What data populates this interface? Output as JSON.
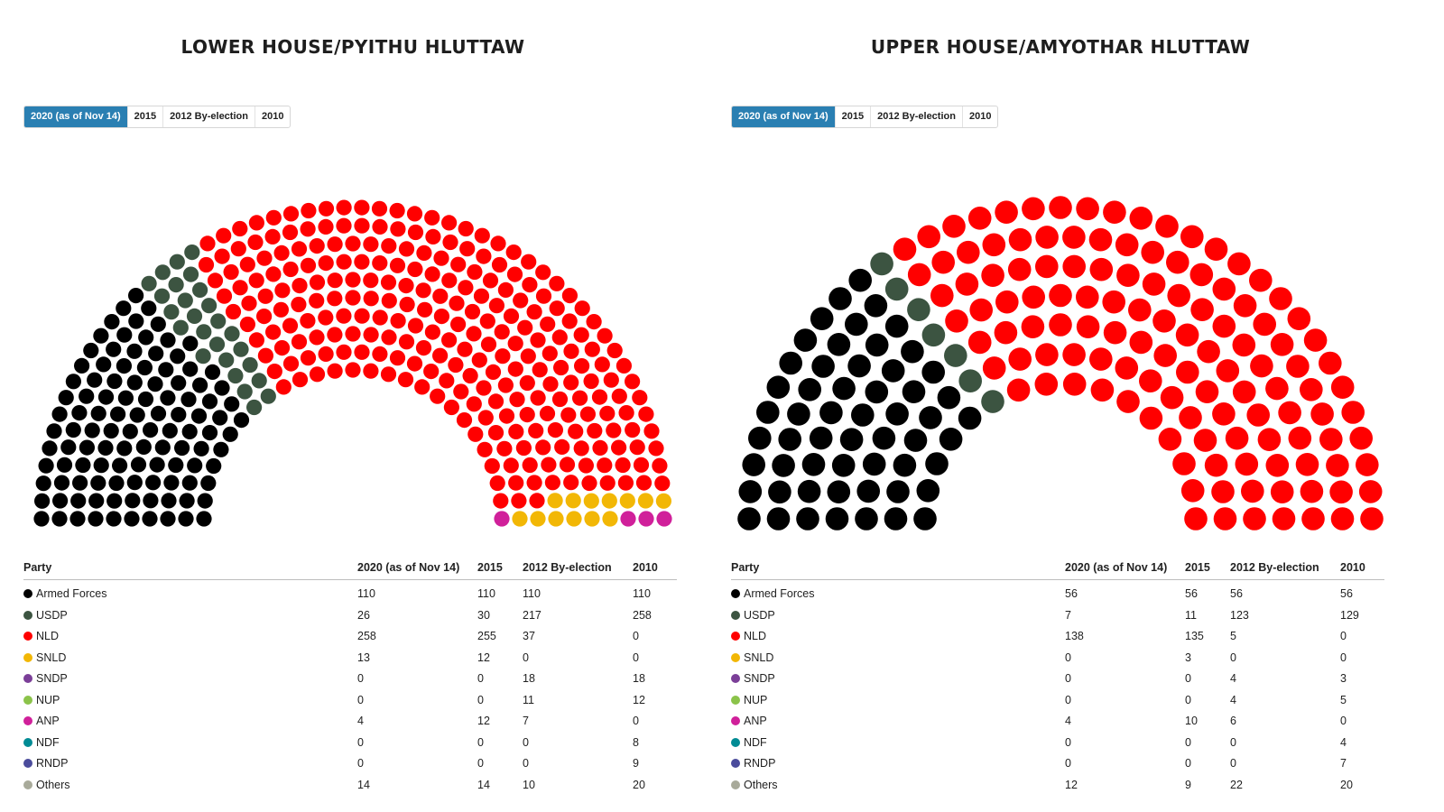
{
  "panels": [
    {
      "title": "LOWER HOUSE/PYITHU HLUTTAW",
      "tabs": [
        "2020 (as of Nov 14)",
        "2015",
        "2012 By-election",
        "2010"
      ],
      "active_tab": 0,
      "table_headers": [
        "Party",
        "2020 (as of Nov 14)",
        "2015",
        "2012 By-election",
        "2010"
      ],
      "rows": [
        {
          "party": "Armed Forces",
          "color": "#000000",
          "v2020": "110",
          "v2015": "110",
          "v2012": "110",
          "v2010": "110"
        },
        {
          "party": "USDP",
          "color": "#3c5441",
          "v2020": "26",
          "v2015": "30",
          "v2012": "217",
          "v2010": "258"
        },
        {
          "party": "NLD",
          "color": "#ff0000",
          "v2020": "258",
          "v2015": "255",
          "v2012": "37",
          "v2010": "0"
        },
        {
          "party": "SNLD",
          "color": "#f2b705",
          "v2020": "13",
          "v2015": "12",
          "v2012": "0",
          "v2010": "0"
        },
        {
          "party": "SNDP",
          "color": "#7b3f98",
          "v2020": "0",
          "v2015": "0",
          "v2012": "18",
          "v2010": "18"
        },
        {
          "party": "NUP",
          "color": "#8bc34a",
          "v2020": "0",
          "v2015": "0",
          "v2012": "11",
          "v2010": "12"
        },
        {
          "party": "ANP",
          "color": "#d0209a",
          "v2020": "4",
          "v2015": "12",
          "v2012": "7",
          "v2010": "0"
        },
        {
          "party": "NDF",
          "color": "#008b94",
          "v2020": "0",
          "v2015": "0",
          "v2012": "0",
          "v2010": "8"
        },
        {
          "party": "RNDP",
          "color": "#4b4c9c",
          "v2020": "0",
          "v2015": "0",
          "v2012": "0",
          "v2010": "9"
        },
        {
          "party": "Others",
          "color": "#a8aa9a",
          "v2020": "14",
          "v2015": "14",
          "v2012": "10",
          "v2010": "20"
        }
      ]
    },
    {
      "title": "UPPER HOUSE/AMYOTHAR HLUTTAW",
      "tabs": [
        "2020 (as of Nov 14)",
        "2015",
        "2012 By-election",
        "2010"
      ],
      "active_tab": 0,
      "table_headers": [
        "Party",
        "2020 (as of Nov 14)",
        "2015",
        "2012 By-election",
        "2010"
      ],
      "rows": [
        {
          "party": "Armed Forces",
          "color": "#000000",
          "v2020": "56",
          "v2015": "56",
          "v2012": "56",
          "v2010": "56"
        },
        {
          "party": "USDP",
          "color": "#3c5441",
          "v2020": "7",
          "v2015": "11",
          "v2012": "123",
          "v2010": "129"
        },
        {
          "party": "NLD",
          "color": "#ff0000",
          "v2020": "138",
          "v2015": "135",
          "v2012": "5",
          "v2010": "0"
        },
        {
          "party": "SNLD",
          "color": "#f2b705",
          "v2020": "0",
          "v2015": "3",
          "v2012": "0",
          "v2010": "0"
        },
        {
          "party": "SNDP",
          "color": "#7b3f98",
          "v2020": "0",
          "v2015": "0",
          "v2012": "4",
          "v2010": "3"
        },
        {
          "party": "NUP",
          "color": "#8bc34a",
          "v2020": "0",
          "v2015": "0",
          "v2012": "4",
          "v2010": "5"
        },
        {
          "party": "ANP",
          "color": "#d0209a",
          "v2020": "4",
          "v2015": "10",
          "v2012": "6",
          "v2010": "0"
        },
        {
          "party": "NDF",
          "color": "#008b94",
          "v2020": "0",
          "v2015": "0",
          "v2012": "0",
          "v2010": "4"
        },
        {
          "party": "RNDP",
          "color": "#4b4c9c",
          "v2020": "0",
          "v2015": "0",
          "v2012": "0",
          "v2010": "7"
        },
        {
          "party": "Others",
          "color": "#a8aa9a",
          "v2020": "12",
          "v2015": "9",
          "v2012": "22",
          "v2010": "20"
        }
      ]
    }
  ],
  "chart_data": [
    {
      "type": "parliament",
      "title": "LOWER HOUSE/PYITHU HLUTTAW",
      "series": [
        {
          "name": "Armed Forces",
          "color": "#000000",
          "seats": 110
        },
        {
          "name": "USDP",
          "color": "#3c5441",
          "seats": 26
        },
        {
          "name": "NLD",
          "color": "#ff0000",
          "seats": 258
        },
        {
          "name": "SNLD",
          "color": "#f2b705",
          "seats": 13
        },
        {
          "name": "ANP",
          "color": "#d0209a",
          "seats": 4
        },
        {
          "name": "Others",
          "color": "#a8aa9a",
          "seats": 14
        },
        {
          "name": "NDF",
          "color": "#008b94",
          "seats": 0
        }
      ]
    },
    {
      "type": "parliament",
      "title": "UPPER HOUSE/AMYOTHAR HLUTTAW",
      "series": [
        {
          "name": "Armed Forces",
          "color": "#000000",
          "seats": 56
        },
        {
          "name": "USDP",
          "color": "#3c5441",
          "seats": 7
        },
        {
          "name": "NLD",
          "color": "#ff0000",
          "seats": 138
        },
        {
          "name": "ANP",
          "color": "#d0209a",
          "seats": 4
        },
        {
          "name": "Others",
          "color": "#a8aa9a",
          "seats": 12
        },
        {
          "name": "NDF",
          "color": "#008b94",
          "seats": 0
        }
      ]
    }
  ]
}
